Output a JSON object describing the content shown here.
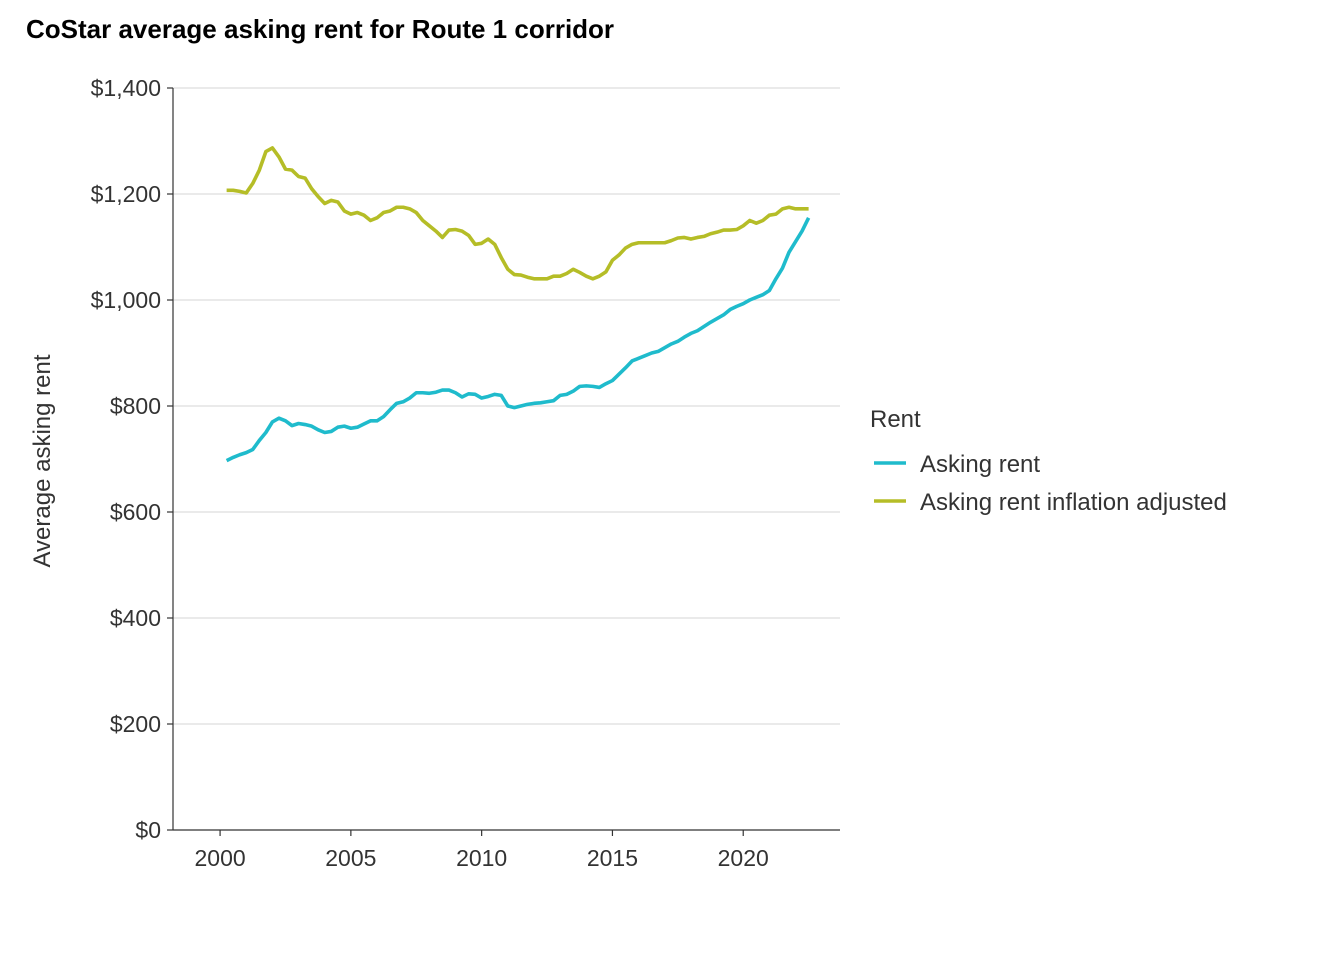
{
  "colors": {
    "asking_rent": "#1FBBCC",
    "inflation_adjusted": "#B5BD27",
    "grid": "#d4d4d4",
    "text": "#333333"
  },
  "chart_data": {
    "type": "line",
    "title": "CoStar average asking rent for Route 1 corridor",
    "ylabel": "Average asking rent",
    "xlabel": "",
    "xlim": [
      1998.2,
      2023.7
    ],
    "ylim": [
      0,
      1400
    ],
    "x_ticks": [
      2000,
      2005,
      2010,
      2015,
      2020
    ],
    "x_tick_labels": [
      "2000",
      "2005",
      "2010",
      "2015",
      "2020"
    ],
    "y_ticks": [
      0,
      200,
      400,
      600,
      800,
      1000,
      1200,
      1400
    ],
    "y_tick_labels": [
      "$0",
      "$200",
      "$400",
      "$600",
      "$800",
      "$1,000",
      "$1,200",
      "$1,400"
    ],
    "grid": "horizontal",
    "legend": {
      "title": "Rent",
      "placement": "right"
    },
    "series": [
      {
        "name": "Asking rent",
        "color_key": "asking_rent",
        "x": [
          2000.25,
          2000.5,
          2000.75,
          2001.0,
          2001.25,
          2001.5,
          2001.75,
          2002.0,
          2002.25,
          2002.5,
          2002.75,
          2003.0,
          2003.25,
          2003.5,
          2003.75,
          2004.0,
          2004.25,
          2004.5,
          2004.75,
          2005.0,
          2005.25,
          2005.5,
          2005.75,
          2006.0,
          2006.25,
          2006.5,
          2006.75,
          2007.0,
          2007.25,
          2007.5,
          2007.75,
          2008.0,
          2008.25,
          2008.5,
          2008.75,
          2009.0,
          2009.25,
          2009.5,
          2009.75,
          2010.0,
          2010.25,
          2010.5,
          2010.75,
          2011.0,
          2011.25,
          2011.5,
          2011.75,
          2012.0,
          2012.25,
          2012.5,
          2012.75,
          2013.0,
          2013.25,
          2013.5,
          2013.75,
          2014.0,
          2014.25,
          2014.5,
          2014.75,
          2015.0,
          2015.25,
          2015.5,
          2015.75,
          2016.0,
          2016.25,
          2016.5,
          2016.75,
          2017.0,
          2017.25,
          2017.5,
          2017.75,
          2018.0,
          2018.25,
          2018.5,
          2018.75,
          2019.0,
          2019.25,
          2019.5,
          2019.75,
          2020.0,
          2020.25,
          2020.5,
          2020.75,
          2021.0,
          2021.25,
          2021.5,
          2021.75,
          2022.0,
          2022.25,
          2022.5
        ],
        "values": [
          697,
          703,
          708,
          712,
          718,
          735,
          750,
          770,
          777,
          772,
          763,
          767,
          765,
          762,
          755,
          750,
          752,
          760,
          762,
          758,
          760,
          766,
          772,
          772,
          780,
          793,
          805,
          808,
          815,
          825,
          825,
          824,
          826,
          830,
          830,
          825,
          817,
          823,
          822,
          815,
          818,
          822,
          820,
          800,
          797,
          800,
          803,
          805,
          806,
          808,
          810,
          820,
          822,
          828,
          837,
          838,
          837,
          835,
          842,
          848,
          860,
          872,
          885,
          890,
          895,
          900,
          903,
          910,
          917,
          922,
          930,
          937,
          942,
          950,
          958,
          965,
          972,
          982,
          988,
          993,
          1000,
          1005,
          1010,
          1018,
          1040,
          1060,
          1090,
          1110,
          1130,
          1155
        ]
      },
      {
        "name": "Asking rent inflation adjusted",
        "color_key": "inflation_adjusted",
        "x": [
          2000.25,
          2000.5,
          2000.75,
          2001.0,
          2001.25,
          2001.5,
          2001.75,
          2002.0,
          2002.25,
          2002.5,
          2002.75,
          2003.0,
          2003.25,
          2003.5,
          2003.75,
          2004.0,
          2004.25,
          2004.5,
          2004.75,
          2005.0,
          2005.25,
          2005.5,
          2005.75,
          2006.0,
          2006.25,
          2006.5,
          2006.75,
          2007.0,
          2007.25,
          2007.5,
          2007.75,
          2008.0,
          2008.25,
          2008.5,
          2008.75,
          2009.0,
          2009.25,
          2009.5,
          2009.75,
          2010.0,
          2010.25,
          2010.5,
          2010.75,
          2011.0,
          2011.25,
          2011.5,
          2011.75,
          2012.0,
          2012.25,
          2012.5,
          2012.75,
          2013.0,
          2013.25,
          2013.5,
          2013.75,
          2014.0,
          2014.25,
          2014.5,
          2014.75,
          2015.0,
          2015.25,
          2015.5,
          2015.75,
          2016.0,
          2016.25,
          2016.5,
          2016.75,
          2017.0,
          2017.25,
          2017.5,
          2017.75,
          2018.0,
          2018.25,
          2018.5,
          2018.75,
          2019.0,
          2019.25,
          2019.5,
          2019.75,
          2020.0,
          2020.25,
          2020.5,
          2020.75,
          2021.0,
          2021.25,
          2021.5,
          2021.75,
          2022.0,
          2022.25,
          2022.5
        ],
        "values": [
          1207,
          1207,
          1205,
          1202,
          1220,
          1245,
          1280,
          1287,
          1270,
          1247,
          1245,
          1233,
          1230,
          1210,
          1195,
          1182,
          1188,
          1185,
          1168,
          1162,
          1165,
          1160,
          1150,
          1155,
          1165,
          1168,
          1175,
          1175,
          1172,
          1165,
          1150,
          1140,
          1130,
          1118,
          1132,
          1133,
          1130,
          1122,
          1105,
          1107,
          1115,
          1105,
          1080,
          1058,
          1048,
          1047,
          1043,
          1040,
          1040,
          1040,
          1045,
          1045,
          1050,
          1058,
          1052,
          1045,
          1040,
          1045,
          1053,
          1075,
          1085,
          1098,
          1105,
          1108,
          1108,
          1108,
          1108,
          1108,
          1112,
          1117,
          1118,
          1115,
          1118,
          1120,
          1125,
          1128,
          1132,
          1132,
          1133,
          1140,
          1150,
          1145,
          1150,
          1160,
          1162,
          1172,
          1175,
          1172,
          1172,
          1172
        ]
      }
    ]
  }
}
